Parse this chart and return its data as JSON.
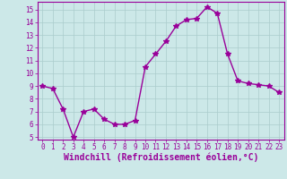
{
  "x": [
    0,
    1,
    2,
    3,
    4,
    5,
    6,
    7,
    8,
    9,
    10,
    11,
    12,
    13,
    14,
    15,
    16,
    17,
    18,
    19,
    20,
    21,
    22,
    23
  ],
  "y": [
    9.0,
    8.8,
    7.2,
    5.0,
    7.0,
    7.2,
    6.4,
    6.0,
    6.0,
    6.3,
    10.5,
    11.5,
    12.5,
    13.7,
    14.2,
    14.3,
    15.2,
    14.7,
    11.5,
    9.4,
    9.2,
    9.1,
    9.0,
    8.5
  ],
  "line_color": "#990099",
  "marker": "*",
  "marker_size": 4,
  "bg_color": "#cce8e8",
  "grid_color": "#aacccc",
  "xlabel": "Windchill (Refroidissement éolien,°C)",
  "xlabel_color": "#990099",
  "ylim_min": 4.8,
  "ylim_max": 15.6,
  "yticks": [
    5,
    6,
    7,
    8,
    9,
    10,
    11,
    12,
    13,
    14,
    15
  ],
  "xlim_min": -0.5,
  "xlim_max": 23.5,
  "xticks": [
    0,
    1,
    2,
    3,
    4,
    5,
    6,
    7,
    8,
    9,
    10,
    11,
    12,
    13,
    14,
    15,
    16,
    17,
    18,
    19,
    20,
    21,
    22,
    23
  ],
  "tick_color": "#990099",
  "tick_fontsize": 5.5,
  "xlabel_fontsize": 7.0,
  "line_width": 1.0,
  "spine_color": "#990099"
}
